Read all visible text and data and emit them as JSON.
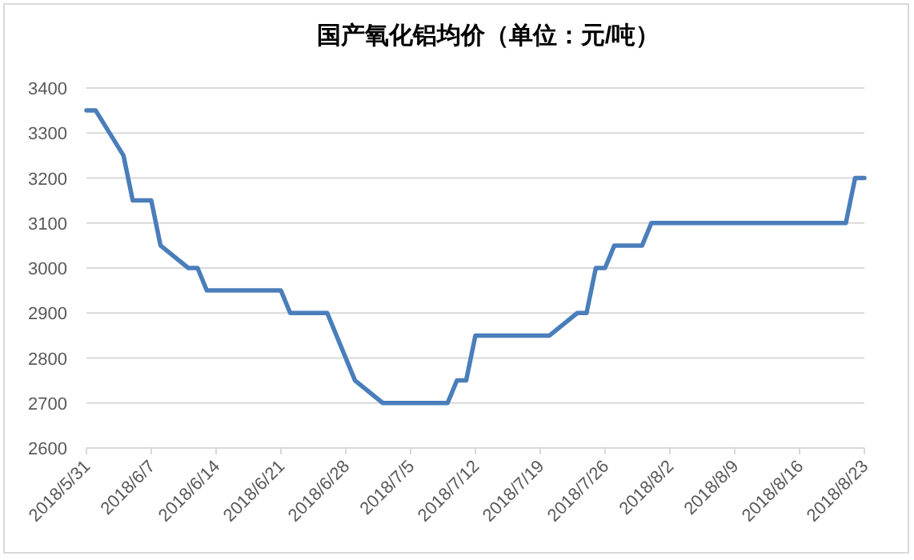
{
  "chart_data": {
    "type": "line",
    "title": "国产氧化铝均价（单位：元/吨）",
    "x": [
      "2018-05-31",
      "2018-06-01",
      "2018-06-04",
      "2018-06-05",
      "2018-06-07",
      "2018-06-08",
      "2018-06-11",
      "2018-06-12",
      "2018-06-13",
      "2018-06-21",
      "2018-06-22",
      "2018-06-26",
      "2018-06-27",
      "2018-06-29",
      "2018-07-02",
      "2018-07-09",
      "2018-07-10",
      "2018-07-11",
      "2018-07-12",
      "2018-07-20",
      "2018-07-23",
      "2018-07-24",
      "2018-07-25",
      "2018-07-26",
      "2018-07-27",
      "2018-07-30",
      "2018-07-31",
      "2018-08-21",
      "2018-08-22",
      "2018-08-23"
    ],
    "series": [
      {
        "color": "#4a7ebb",
        "values": [
          3350,
          3350,
          3250,
          3150,
          3150,
          3050,
          3000,
          3000,
          2950,
          2950,
          2900,
          2900,
          2850,
          2750,
          2700,
          2700,
          2750,
          2750,
          2850,
          2850,
          2900,
          2900,
          3000,
          3000,
          3050,
          3050,
          3100,
          3100,
          3200,
          3200
        ]
      }
    ],
    "xlim": [
      "2018-05-31",
      "2018-08-23"
    ],
    "xticks": [
      {
        "value": "2018-05-31",
        "label": "2018/5/31"
      },
      {
        "value": "2018-06-07",
        "label": "2018/6/7"
      },
      {
        "value": "2018-06-14",
        "label": "2018/6/14"
      },
      {
        "value": "2018-06-21",
        "label": "2018/6/21"
      },
      {
        "value": "2018-06-28",
        "label": "2018/6/28"
      },
      {
        "value": "2018-07-05",
        "label": "2018/7/5"
      },
      {
        "value": "2018-07-12",
        "label": "2018/7/12"
      },
      {
        "value": "2018-07-19",
        "label": "2018/7/19"
      },
      {
        "value": "2018-07-26",
        "label": "2018/7/26"
      },
      {
        "value": "2018-08-02",
        "label": "2018/8/2"
      },
      {
        "value": "2018-08-09",
        "label": "2018/8/9"
      },
      {
        "value": "2018-08-16",
        "label": "2018/8/16"
      },
      {
        "value": "2018-08-23",
        "label": "2018/8/23"
      }
    ],
    "ylim": [
      2600,
      3400
    ],
    "yticks": [
      2600,
      2700,
      2800,
      2900,
      3000,
      3100,
      3200,
      3300,
      3400
    ],
    "grid": "y",
    "marker": "none",
    "line_style": "solid"
  }
}
